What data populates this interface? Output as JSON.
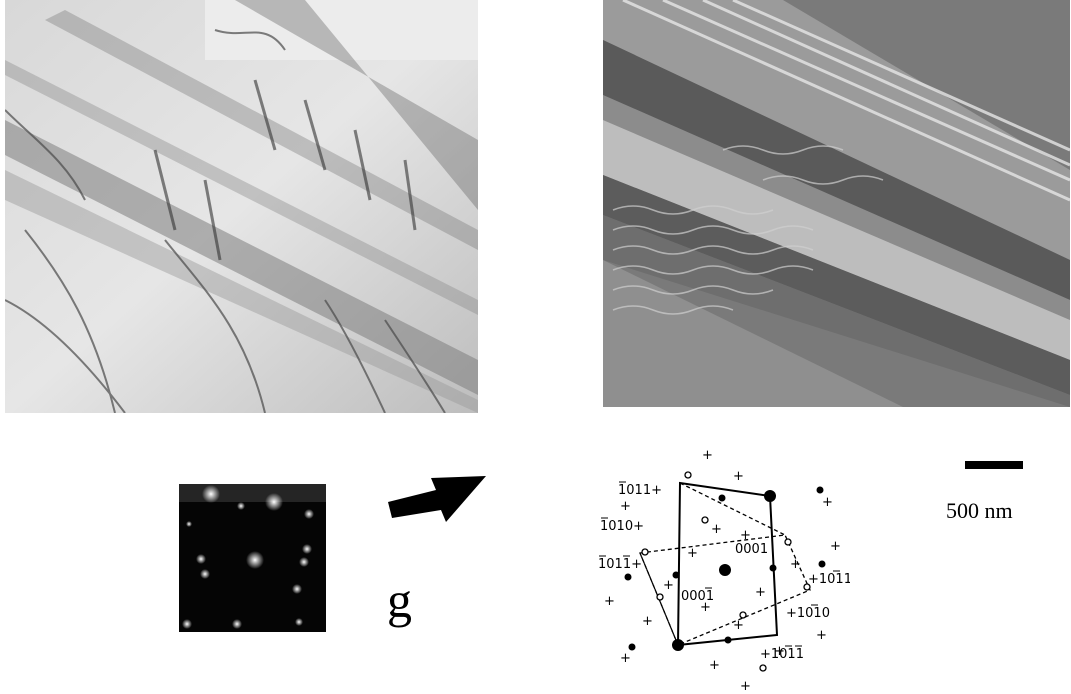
{
  "figure": {
    "panels": [
      {
        "name": "bright-field-micrograph"
      },
      {
        "name": "dark-field-micrograph"
      },
      {
        "name": "diffraction-pattern-photo"
      },
      {
        "name": "indexed-diffraction-pattern"
      }
    ],
    "g_label": "g",
    "scale_bar_label": "500 nm",
    "diffraction_indices": {
      "i1011_top": "1011+",
      "i1010_left": "1010+",
      "i1011_left": "1011+",
      "i0001": "0001",
      "i0001bar": "0001",
      "i1011_right": "+1011",
      "i1010_right": "+1010",
      "i1011_bottom": "+1011"
    },
    "colors": {
      "ink": "#000000",
      "background": "#ffffff"
    }
  }
}
